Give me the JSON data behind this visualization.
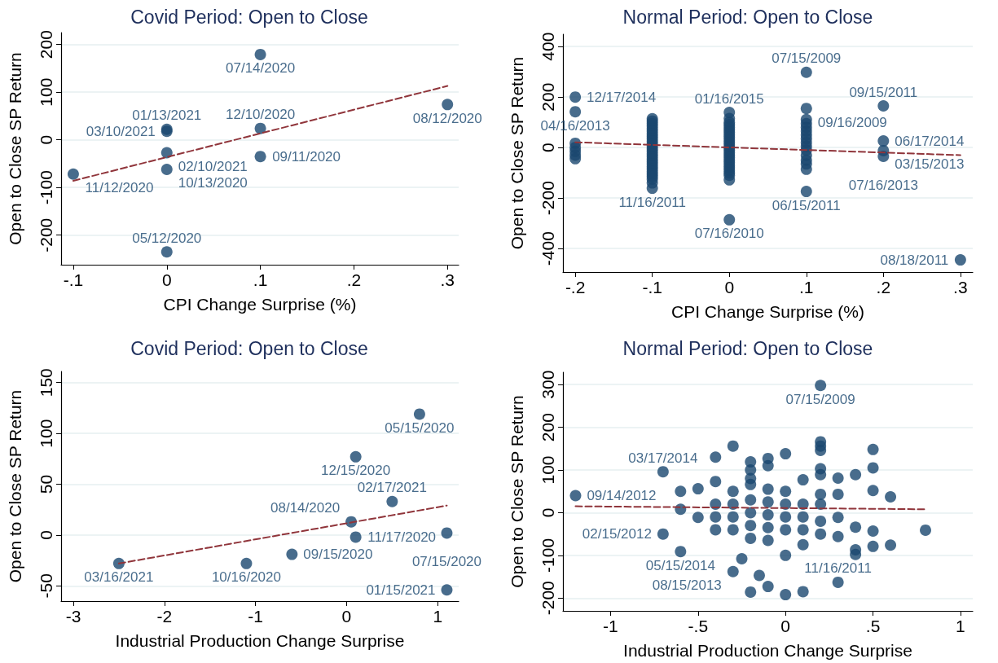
{
  "chart_data": [
    {
      "type": "scatter",
      "title": "Covid Period: Open to Close",
      "xlabel": "CPI Change Surprise (%)",
      "ylabel": "Open to Close SP Return",
      "grid": "y",
      "xlim": [
        -0.113,
        0.312
      ],
      "xticks": [
        {
          "value": -0.1,
          "label": "-.1"
        },
        0,
        {
          "value": 0.1,
          "label": ".1"
        },
        {
          "value": 0.2,
          "label": ".2"
        },
        {
          "value": 0.3,
          "label": ".3"
        }
      ],
      "ylim": [
        -262,
        225
      ],
      "yticks": [
        -200,
        -100,
        0,
        100,
        200
      ],
      "series": [
        {
          "type": "scatter",
          "marker": "circle",
          "color": "#1a476f",
          "x": [
            -0.1,
            0,
            0,
            0,
            0,
            0,
            0.1,
            0.1,
            0.1,
            0.3
          ],
          "values": [
            -72,
            22,
            18,
            -27,
            -62,
            -235,
            179,
            24,
            -35,
            74
          ],
          "value_labels": [
            "11/12/2020",
            "01/13/2021",
            "03/10/2021",
            "02/10/2021",
            "10/13/2020",
            "05/12/2020",
            "07/14/2020",
            "12/10/2020",
            "09/11/2020",
            "08/12/2020"
          ]
        },
        {
          "type": "line",
          "marker": "none",
          "line_style": "dashed",
          "color": "#90353b",
          "x": [
            -0.1,
            0.3
          ],
          "values": [
            -86,
            113
          ]
        }
      ]
    },
    {
      "type": "scatter",
      "title": "Normal Period: Open to Close",
      "xlabel": "CPI Change Surprise (%)",
      "ylabel": "Open to Close SP Return",
      "grid": "y",
      "xlim": [
        -0.216,
        0.316
      ],
      "xticks": [
        {
          "value": -0.2,
          "label": "-.2"
        },
        {
          "value": -0.1,
          "label": "-.1"
        },
        0,
        {
          "value": 0.1,
          "label": ".1"
        },
        {
          "value": 0.2,
          "label": ".2"
        },
        {
          "value": 0.3,
          "label": ".3"
        }
      ],
      "ylim": [
        -493,
        449
      ],
      "yticks": [
        -400,
        -200,
        0,
        200,
        400
      ],
      "series": [
        {
          "type": "scatter",
          "marker": "circle",
          "color": "#1a476f",
          "x": [
            -0.2,
            -0.2,
            -0.2,
            -0.2,
            -0.2,
            -0.2,
            -0.2,
            -0.1,
            -0.1,
            -0.1,
            -0.1,
            -0.1,
            -0.1,
            -0.1,
            -0.1,
            -0.1,
            -0.1,
            -0.1,
            -0.1,
            -0.1,
            -0.1,
            -0.1,
            -0.1,
            -0.1,
            -0.1,
            -0.1,
            -0.1,
            -0.1,
            -0.1,
            -0.1,
            -0.1,
            -0.1,
            -0.1,
            -0.1,
            0,
            0,
            0,
            0,
            0,
            0,
            0,
            0,
            0,
            0,
            0,
            0,
            0,
            0,
            0,
            0,
            0,
            0,
            0,
            0,
            0,
            0,
            0,
            0,
            0,
            0,
            0.1,
            0.1,
            0.1,
            0.1,
            0.1,
            0.1,
            0.1,
            0.1,
            0.1,
            0.1,
            0.1,
            0.1,
            0.1,
            0.1,
            0.1,
            0.1,
            0.2,
            0.2,
            0.2,
            0.2,
            0.3
          ],
          "values": [
            200,
            142,
            17,
            0,
            -15,
            -30,
            -44,
            114,
            105,
            95,
            85,
            75,
            65,
            55,
            45,
            35,
            25,
            15,
            5,
            -5,
            -15,
            -25,
            -35,
            -45,
            -55,
            -65,
            -75,
            -85,
            -95,
            -105,
            -115,
            -125,
            -140,
            -161,
            139,
            115,
            100,
            90,
            80,
            70,
            60,
            50,
            40,
            30,
            20,
            10,
            0,
            -10,
            -20,
            -30,
            -40,
            -50,
            -60,
            -70,
            -80,
            -90,
            -100,
            -110,
            -128,
            -286,
            298,
            155,
            111,
            95,
            80,
            65,
            50,
            35,
            20,
            5,
            -10,
            -31,
            -50,
            -65,
            -86,
            -174,
            165,
            26,
            -12,
            -35,
            -445
          ],
          "value_labels": [
            "12/17/2014",
            "04/16/2013",
            null,
            null,
            null,
            null,
            null,
            null,
            null,
            null,
            null,
            null,
            null,
            null,
            null,
            null,
            null,
            null,
            null,
            null,
            null,
            null,
            null,
            null,
            null,
            null,
            null,
            null,
            null,
            null,
            null,
            null,
            null,
            "11/16/2011",
            "01/16/2015",
            null,
            null,
            null,
            null,
            null,
            null,
            null,
            null,
            null,
            null,
            null,
            null,
            null,
            null,
            null,
            null,
            null,
            null,
            null,
            null,
            null,
            null,
            null,
            null,
            "07/16/2010",
            "07/15/2009",
            "09/16/2009",
            null,
            null,
            null,
            null,
            null,
            null,
            null,
            null,
            null,
            null,
            null,
            null,
            null,
            "06/15/2011",
            "09/15/2011",
            "06/17/2014",
            "03/15/2013",
            "07/16/2013",
            "08/18/2011"
          ]
        },
        {
          "type": "line",
          "marker": "none",
          "line_style": "dashed",
          "color": "#90353b",
          "x": [
            -0.2,
            0.3
          ],
          "values": [
            21,
            -30
          ]
        }
      ]
    },
    {
      "type": "scatter",
      "title": "Covid Period: Open to Close",
      "xlabel": "Industrial Production Change Surprise",
      "ylabel": "Open to Close SP Return",
      "grid": "y",
      "xlim": [
        -3.134,
        1.23
      ],
      "xticks": [
        -3,
        -2,
        -1,
        0,
        1
      ],
      "ylim": [
        -65,
        161
      ],
      "yticks": [
        -50,
        0,
        50,
        100,
        150
      ],
      "series": [
        {
          "type": "scatter",
          "marker": "circle",
          "color": "#1a476f",
          "x": [
            -2.5,
            -1.1,
            -0.6,
            0.05,
            0.1,
            0.1,
            0.5,
            0.8,
            1.1,
            1.1
          ],
          "values": [
            -28,
            -28,
            -19,
            13,
            -2,
            77,
            33,
            119,
            2,
            -54
          ],
          "value_labels": [
            "03/16/2021",
            "10/16/2020",
            "09/15/2020",
            "08/14/2020",
            "11/17/2020",
            "12/15/2020",
            "02/17/2021",
            "05/15/2020",
            "07/15/2020",
            "01/15/2021"
          ]
        },
        {
          "type": "line",
          "marker": "none",
          "line_style": "dashed",
          "color": "#90353b",
          "x": [
            -2.5,
            1.1
          ],
          "values": [
            -28,
            29
          ]
        }
      ]
    },
    {
      "type": "scatter",
      "title": "Normal Period: Open to Close",
      "xlabel": "Industrial Production Change Surprise",
      "ylabel": "Open to Close SP Return",
      "grid": "y",
      "xlim": [
        -1.272,
        1.07
      ],
      "xticks": [
        -1,
        {
          "value": -0.5,
          "label": "-.5"
        },
        0,
        {
          "value": 0.5,
          "label": ".5"
        },
        1
      ],
      "ylim": [
        -230,
        329
      ],
      "yticks": [
        -200,
        -100,
        0,
        100,
        200,
        300
      ],
      "series": [
        {
          "type": "scatter",
          "marker": "circle",
          "color": "#1a476f",
          "x": [
            -1.2,
            -0.7,
            -0.7,
            -0.6,
            -0.6,
            -0.6,
            -0.5,
            -0.5,
            -0.4,
            -0.4,
            -0.4,
            -0.4,
            -0.4,
            -0.3,
            -0.3,
            -0.3,
            -0.3,
            -0.3,
            -0.3,
            -0.25,
            -0.2,
            -0.2,
            -0.2,
            -0.2,
            -0.2,
            -0.2,
            -0.2,
            -0.2,
            -0.2,
            -0.15,
            -0.1,
            -0.1,
            -0.1,
            -0.1,
            -0.1,
            -0.1,
            -0.1,
            -0.1,
            0,
            0,
            0,
            0,
            0,
            0,
            0,
            0.1,
            0.1,
            0.1,
            0.1,
            0.1,
            0.1,
            0.2,
            0.2,
            0.2,
            0.2,
            0.2,
            0.2,
            0.2,
            0.2,
            0.2,
            0.2,
            0.3,
            0.3,
            0.3,
            0.3,
            0.3,
            0.4,
            0.4,
            0.4,
            0.4,
            0.5,
            0.5,
            0.5,
            0.5,
            0.5,
            0.6,
            0.6,
            0.8
          ],
          "values": [
            40,
            96,
            -50,
            50,
            8,
            -91,
            56,
            -11,
            130,
            73,
            20,
            -10,
            -40,
            156,
            50,
            20,
            -10,
            -40,
            -138,
            -108,
            119,
            100,
            80,
            66,
            30,
            0,
            -30,
            -60,
            -186,
            -147,
            127,
            110,
            55,
            25,
            -5,
            -35,
            -65,
            -173,
            138,
            50,
            20,
            -10,
            -40,
            -100,
            -192,
            77,
            20,
            -10,
            -40,
            -75,
            -185,
            298,
            166,
            156,
            146,
            103,
            89,
            43,
            20,
            -20,
            -50,
            81,
            43,
            -11,
            -56,
            -163,
            89,
            -34,
            -87,
            -98,
            148,
            105,
            52,
            -43,
            -79,
            37,
            -76,
            -41
          ],
          "value_labels": [
            "09/14/2012",
            "03/17/2014",
            "02/15/2012",
            null,
            null,
            "05/15/2014",
            null,
            null,
            null,
            null,
            null,
            null,
            null,
            null,
            null,
            null,
            null,
            null,
            "08/15/2013",
            null,
            null,
            null,
            null,
            null,
            null,
            null,
            null,
            null,
            null,
            null,
            null,
            null,
            null,
            null,
            null,
            null,
            null,
            null,
            null,
            null,
            null,
            null,
            null,
            null,
            null,
            null,
            null,
            null,
            null,
            null,
            null,
            "07/15/2009",
            null,
            null,
            null,
            null,
            null,
            null,
            null,
            null,
            null,
            null,
            null,
            null,
            null,
            "11/16/2011",
            null,
            null,
            null,
            null,
            null,
            null,
            null,
            null,
            null,
            null,
            null,
            null
          ]
        },
        {
          "type": "line",
          "marker": "none",
          "line_style": "dashed",
          "color": "#90353b",
          "x": [
            -1.2,
            0.8
          ],
          "values": [
            15,
            8
          ]
        }
      ]
    }
  ]
}
